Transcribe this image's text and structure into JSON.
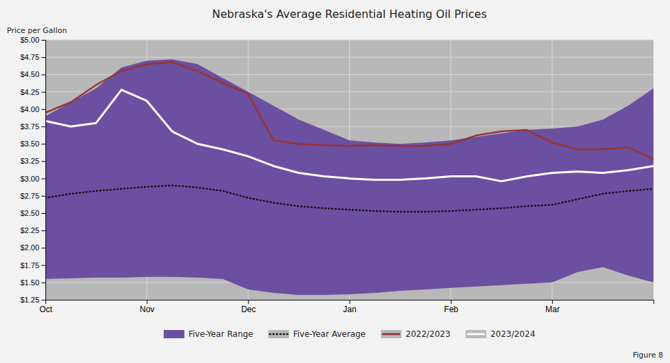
{
  "chart_data": {
    "type": "line",
    "title": "Nebraska's Average Residential Heating Oil Prices",
    "y_label": "Price per Gallon",
    "annotations": [
      "Figure 8"
    ],
    "categories": [
      "Oct",
      null,
      null,
      null,
      "Nov",
      null,
      null,
      null,
      "Dec",
      null,
      null,
      null,
      "Jan",
      null,
      null,
      null,
      "Feb",
      null,
      null,
      null,
      "Mar",
      null,
      null,
      null,
      null
    ],
    "ylim": [
      1.25,
      5.0
    ],
    "yticks": [
      {
        "value": 1.25,
        "label": "$1.25"
      },
      {
        "value": 1.5,
        "label": "$1.50"
      },
      {
        "value": 1.75,
        "label": "$1.75"
      },
      {
        "value": 2.0,
        "label": "$2.00"
      },
      {
        "value": 2.25,
        "label": "$2.25"
      },
      {
        "value": 2.5,
        "label": "$2.50"
      },
      {
        "value": 2.75,
        "label": "$2.75"
      },
      {
        "value": 3.0,
        "label": "$3.00"
      },
      {
        "value": 3.25,
        "label": "$3.25"
      },
      {
        "value": 3.5,
        "label": "$3.50"
      },
      {
        "value": 3.75,
        "label": "$3.75"
      },
      {
        "value": 4.0,
        "label": "$4.00"
      },
      {
        "value": 4.25,
        "label": "$4.25"
      },
      {
        "value": 4.5,
        "label": "$4.50"
      },
      {
        "value": 4.75,
        "label": "$4.75"
      },
      {
        "value": 5.0,
        "label": "$5.00"
      }
    ],
    "grid": true,
    "legend": "bottom",
    "series": [
      {
        "name": "Five-Year Range",
        "type": "area",
        "color": "#6B4FA0",
        "values": [
          3.9,
          4.1,
          4.3,
          4.6,
          4.7,
          4.72,
          4.65,
          4.45,
          4.25,
          4.05,
          3.85,
          3.7,
          3.55,
          3.52,
          3.5,
          3.52,
          3.55,
          3.6,
          3.65,
          3.7,
          3.72,
          3.75,
          3.85,
          4.05,
          4.3
        ],
        "lower": [
          1.55,
          1.56,
          1.57,
          1.57,
          1.58,
          1.58,
          1.57,
          1.55,
          1.4,
          1.35,
          1.32,
          1.32,
          1.33,
          1.35,
          1.38,
          1.4,
          1.42,
          1.44,
          1.46,
          1.48,
          1.5,
          1.65,
          1.72,
          1.6,
          1.5
        ]
      },
      {
        "name": "Five-Year Average",
        "type": "line",
        "color": "#111111",
        "line_style": "dotted",
        "values": [
          2.72,
          2.78,
          2.82,
          2.85,
          2.88,
          2.9,
          2.87,
          2.82,
          2.72,
          2.65,
          2.6,
          2.57,
          2.55,
          2.53,
          2.52,
          2.52,
          2.53,
          2.55,
          2.57,
          2.6,
          2.62,
          2.7,
          2.78,
          2.82,
          2.85
        ]
      },
      {
        "name": "2022/2023",
        "type": "line",
        "color": "#993333",
        "line_style": "solid",
        "values": [
          3.95,
          4.1,
          4.35,
          4.55,
          4.65,
          4.68,
          4.55,
          4.38,
          4.22,
          3.55,
          3.5,
          3.48,
          3.47,
          3.48,
          3.47,
          3.47,
          3.5,
          3.62,
          3.68,
          3.7,
          3.52,
          3.42,
          3.42,
          3.45,
          3.28
        ]
      },
      {
        "name": "2023/2024",
        "type": "line",
        "color": "#FFFFFF",
        "line_style": "solid",
        "values": [
          3.83,
          3.75,
          3.8,
          4.28,
          4.12,
          3.68,
          3.5,
          3.42,
          3.32,
          3.18,
          3.08,
          3.03,
          3.0,
          2.98,
          2.98,
          3.0,
          3.03,
          3.03,
          2.96,
          3.03,
          3.08,
          3.1,
          3.08,
          3.12,
          3.18
        ]
      }
    ]
  }
}
